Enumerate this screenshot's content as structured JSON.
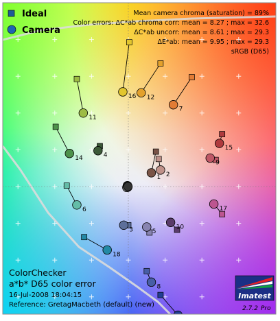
{
  "chart_data": {
    "type": "scatter",
    "title": "ColorChecker",
    "subtitle": "a*b* D65 color error",
    "date_text": "16-Jul-2008 18:04:15",
    "reference_text": "Reference: GretagMacbeth (default) (new)",
    "xlabel": "",
    "ylabel": "",
    "xlim": [
      -40,
      70
    ],
    "ylim": [
      -50,
      90
    ],
    "grid": true,
    "legend_position": "top-left",
    "legend": [
      {
        "name": "Ideal",
        "marker": "square",
        "color": "#1e5b96"
      },
      {
        "name": "Camera",
        "marker": "circle",
        "color": "#1e64b4"
      }
    ],
    "stats": [
      "Mean camera chroma (saturation) = 89%",
      "Color errors:  ΔC*ab chroma corr:  mean = 8.27 ;  max = 32.6",
      "ΔC*ab uncorr:  mean = 8.61 ;  max = 29.3",
      "ΔE*ab:  mean = 9.95 ;  max = 29.3",
      "sRGB (D65)"
    ],
    "logo": {
      "text": "Imatest",
      "version": "2.7.2",
      "edition": "Pro"
    },
    "patches": [
      {
        "id": "1",
        "ideal": [
          15.0,
          19.0
        ],
        "camera": [
          12.5,
          7.5
        ],
        "color": "#7a5447"
      },
      {
        "id": "2",
        "ideal": [
          16.5,
          15.0
        ],
        "camera": [
          17.5,
          9.0
        ],
        "color": "#c0928a"
      },
      {
        "id": "3",
        "ideal": [
          0.0,
          -21.0
        ],
        "camera": [
          -2.5,
          -21.0
        ],
        "color": "#5d6f9a"
      },
      {
        "id": "4",
        "ideal": [
          -15.5,
          22.0
        ],
        "camera": [
          -16.5,
          19.5
        ],
        "color": "#3c5a38"
      },
      {
        "id": "5",
        "ideal": [
          11.5,
          -25.0
        ],
        "camera": [
          10.0,
          -22.0
        ],
        "color": "#8884b1"
      },
      {
        "id": "6",
        "ideal": [
          -33.5,
          0.5
        ],
        "camera": [
          -28.0,
          -10.0
        ],
        "color": "#64bda8"
      },
      {
        "id": "7",
        "ideal": [
          34.5,
          59.5
        ],
        "camera": [
          24.5,
          44.5
        ],
        "color": "#e27c35"
      },
      {
        "id": "8",
        "ideal": [
          10.0,
          -46.0
        ],
        "camera": [
          12.5,
          -52.0
        ],
        "color": "#475ea6"
      },
      {
        "id": "9",
        "ideal": [
          47.5,
          14.5
        ],
        "camera": [
          44.5,
          15.5
        ],
        "color": "#c05866"
      },
      {
        "id": "10",
        "ideal": [
          26.5,
          -23.5
        ],
        "camera": [
          23.0,
          -19.5
        ],
        "color": "#5a3c6a"
      },
      {
        "id": "11",
        "ideal": [
          -28.0,
          58.5
        ],
        "camera": [
          -24.5,
          40.0
        ],
        "color": "#9dbb44"
      },
      {
        "id": "12",
        "ideal": [
          17.5,
          67.0
        ],
        "camera": [
          7.0,
          51.0
        ],
        "color": "#e3a12c"
      },
      {
        "id": "13",
        "ideal": [
          17.5,
          -59.0
        ],
        "camera": [
          27.0,
          -70.0
        ],
        "color": "#213e93"
      },
      {
        "id": "14",
        "ideal": [
          -39.5,
          32.5
        ],
        "camera": [
          -32.0,
          18.0
        ],
        "color": "#4d924b"
      },
      {
        "id": "15",
        "ideal": [
          51.0,
          28.5
        ],
        "camera": [
          49.5,
          23.5
        ],
        "color": "#af3a3d"
      },
      {
        "id": "16",
        "ideal": [
          0.5,
          78.5
        ],
        "camera": [
          -3.0,
          51.5
        ],
        "color": "#e2c62e"
      },
      {
        "id": "17",
        "ideal": [
          51.0,
          -15.0
        ],
        "camera": [
          46.5,
          -9.5
        ],
        "color": "#bc5590"
      },
      {
        "id": "18",
        "ideal": [
          -24.0,
          -27.5
        ],
        "camera": [
          -11.5,
          -34.5
        ],
        "color": "#2389a5"
      },
      {
        "id": "19",
        "ideal": [
          0.0,
          0.5
        ],
        "camera": [
          -0.5,
          0.5
        ],
        "color": "#f4f4f0",
        "label": false
      },
      {
        "id": "20",
        "ideal": [
          0.0,
          0.0
        ],
        "camera": [
          -0.3,
          -0.3
        ],
        "color": "#c9c9c9",
        "label": false
      },
      {
        "id": "21",
        "ideal": [
          0.0,
          -0.3
        ],
        "camera": [
          -0.6,
          0.0
        ],
        "color": "#a0a0a0",
        "label": false
      },
      {
        "id": "22",
        "ideal": [
          0.0,
          0.0
        ],
        "camera": [
          -0.8,
          -0.5
        ],
        "color": "#7a7a7a",
        "label": false
      },
      {
        "id": "23",
        "ideal": [
          0.0,
          0.3
        ],
        "camera": [
          -0.4,
          0.3
        ],
        "color": "#555555",
        "label": false
      },
      {
        "id": "24",
        "ideal": [
          0.0,
          0.0
        ],
        "camera": [
          -0.2,
          0.0
        ],
        "color": "#343434",
        "label": false
      }
    ]
  }
}
